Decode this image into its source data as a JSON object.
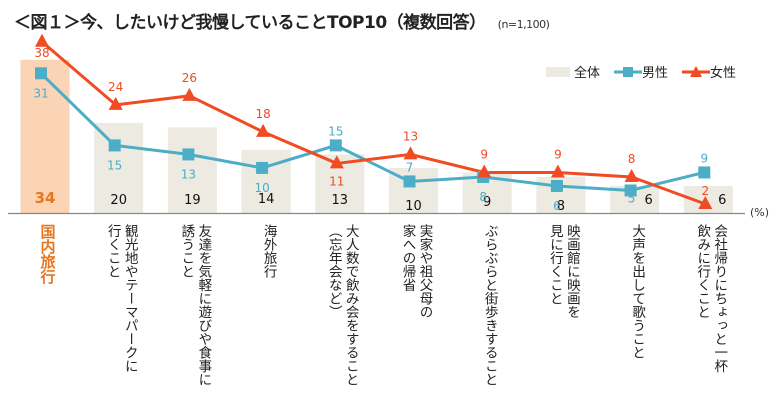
{
  "title": "＜図１＞今、したいけど我慢していることTOP10（複数回答）",
  "sample_size": "(n=1,100)",
  "unit": "(%)",
  "colors": {
    "overall_bar": "#edeae1",
    "highlight_bar": "#fbd3b5",
    "highlight_text": "#e8761f",
    "male": "#4badc6",
    "female": "#f04b22",
    "axis": "#888888"
  },
  "legend": [
    {
      "label": "全体",
      "type": "bar"
    },
    {
      "label": "男性",
      "type": "line-square"
    },
    {
      "label": "女性",
      "type": "line-triangle"
    }
  ],
  "chart_data": {
    "type": "bar",
    "title": "＜図１＞今、したいけど我慢していることTOP10（複数回答）",
    "xlabel": "",
    "ylabel": "(%)",
    "ylim": [
      0,
      40
    ],
    "grid": false,
    "legend_position": "top-right",
    "categories": [
      "国内旅行",
      "観光地やテーマパークに\n行くこと",
      "友達を気軽に遊びや食事に\n誘うこと",
      "海外旅行",
      "大人数で飲み会をすること\n（忘年会など）",
      "実家や祖父母の\n家への帰省",
      "ぶらぶらと街歩きすること",
      "映画館に映画を\n見に行くこと",
      "大声を出して歌うこと",
      "会社帰りにちょっと一杯\n飲みに行くこと"
    ],
    "series": [
      {
        "name": "全体",
        "type": "bar",
        "values": [
          34,
          20,
          19,
          14,
          13,
          10,
          9,
          8,
          6,
          6
        ]
      },
      {
        "name": "男性",
        "type": "line",
        "marker": "square",
        "values": [
          31,
          15,
          13,
          10,
          15,
          7,
          8,
          6,
          5,
          9
        ]
      },
      {
        "name": "女性",
        "type": "line",
        "marker": "triangle",
        "values": [
          38,
          24,
          26,
          18,
          11,
          13,
          9,
          9,
          8,
          2
        ]
      }
    ],
    "highlight_index": 0
  }
}
